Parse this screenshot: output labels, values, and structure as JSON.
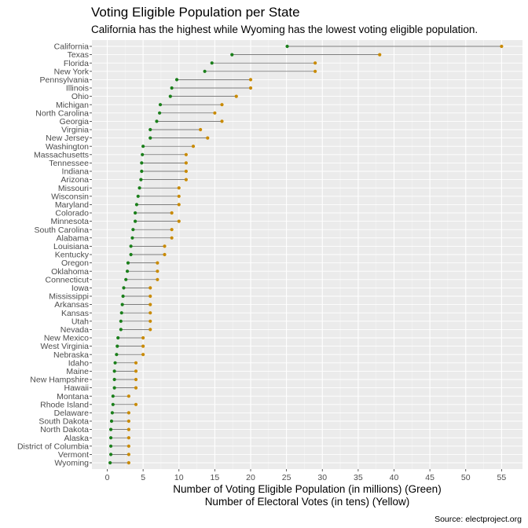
{
  "chart_data": {
    "type": "dumbbell",
    "title": "Voting Eligible Population per State",
    "subtitle": "California has the highest while Wyoming has the lowest voting eligible population.",
    "xlabel_line1": "Number of Voting Eligible Population (in millions) (Green)",
    "xlabel_line2": "Number of Electoral Votes (in tens) (Yellow)",
    "caption": "Source: electproject.org",
    "xlim": [
      0,
      56
    ],
    "xticks": [
      0,
      5,
      10,
      15,
      20,
      25,
      30,
      35,
      40,
      45,
      50,
      55
    ],
    "colors": {
      "population": "#1a7f1a",
      "electoral": "#c98a00",
      "segment": "#555555",
      "panel": "#ebebeb",
      "grid": "#ffffff"
    },
    "grid": true,
    "legend": "none",
    "categories": [
      "California",
      "Texas",
      "Florida",
      "New York",
      "Pennsylvania",
      "Illinois",
      "Ohio",
      "Michigan",
      "North Carolina",
      "Georgia",
      "Virginia",
      "New Jersey",
      "Washington",
      "Massachusetts",
      "Tennessee",
      "Indiana",
      "Arizona",
      "Missouri",
      "Wisconsin",
      "Maryland",
      "Colorado",
      "Minnesota",
      "South Carolina",
      "Alabama",
      "Louisiana",
      "Kentucky",
      "Oregon",
      "Oklahoma",
      "Connecticut",
      "Iowa",
      "Mississippi",
      "Arkansas",
      "Kansas",
      "Utah",
      "Nevada",
      "New Mexico",
      "West Virginia",
      "Nebraska",
      "Idaho",
      "Maine",
      "New Hampshire",
      "Hawaii",
      "Montana",
      "Rhode Island",
      "Delaware",
      "South Dakota",
      "North Dakota",
      "Alaska",
      "District of Columbia",
      "Vermont",
      "Wyoming"
    ],
    "series": [
      {
        "key": "population",
        "values": [
          25.1,
          17.4,
          14.6,
          13.6,
          9.7,
          9.0,
          8.8,
          7.4,
          7.3,
          6.9,
          6.0,
          6.0,
          5.0,
          4.9,
          4.8,
          4.8,
          4.7,
          4.5,
          4.3,
          4.1,
          3.9,
          3.9,
          3.6,
          3.5,
          3.3,
          3.3,
          2.9,
          2.8,
          2.6,
          2.3,
          2.2,
          2.1,
          2.0,
          1.9,
          1.9,
          1.5,
          1.4,
          1.3,
          1.1,
          1.0,
          1.0,
          1.0,
          0.8,
          0.8,
          0.7,
          0.6,
          0.5,
          0.5,
          0.5,
          0.5,
          0.4
        ]
      },
      {
        "key": "electoral",
        "values": [
          5.5,
          3.8,
          2.9,
          2.9,
          2.0,
          2.0,
          1.8,
          1.6,
          1.5,
          1.6,
          1.3,
          1.4,
          1.2,
          1.1,
          1.1,
          1.1,
          1.1,
          1.0,
          1.0,
          1.0,
          0.9,
          1.0,
          0.9,
          0.9,
          0.8,
          0.8,
          0.7,
          0.7,
          0.7,
          0.6,
          0.6,
          0.6,
          0.6,
          0.6,
          0.6,
          0.5,
          0.5,
          0.5,
          0.4,
          0.4,
          0.4,
          0.4,
          0.3,
          0.4,
          0.3,
          0.3,
          0.3,
          0.3,
          0.3,
          0.3,
          0.3
        ]
      }
    ],
    "electoral_display_scale": 10
  }
}
